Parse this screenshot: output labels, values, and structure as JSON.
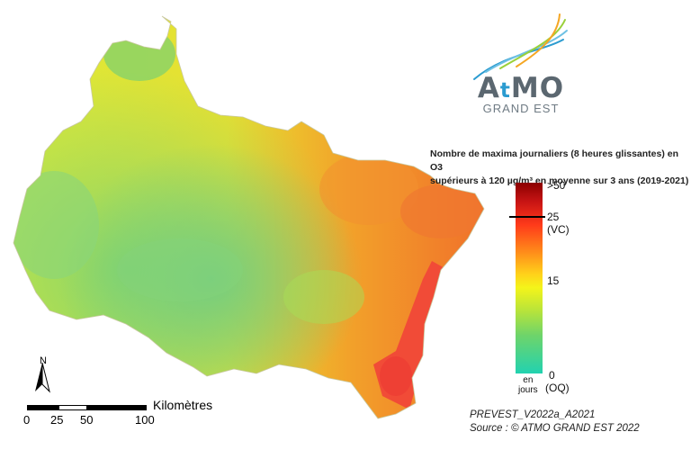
{
  "logo": {
    "line1_a": "A",
    "line1_t": "t",
    "line1_b": "MO",
    "line2": "GRAND EST"
  },
  "legend": {
    "title_line1": "Nombre de maxima journaliers (8 heures glissantes) en O3",
    "title_line2": "supérieurs à 120 µg/m³  en moyenne sur 3 ans (2019-2021)",
    "tick_max": ">50",
    "tick_25": "25",
    "tick_25_note": "(VC)",
    "tick_15": "15",
    "tick_0": "0",
    "tick_0_note": "(OQ)",
    "unit_line1": "en",
    "unit_line2": "jours",
    "colors": [
      "#8b0000",
      "#c81414",
      "#ff3a1a",
      "#ff8a1a",
      "#ffd21a",
      "#f4f41a",
      "#b8e43a",
      "#6ed46a",
      "#22d2b0"
    ]
  },
  "north_arrow": {
    "label": "N"
  },
  "scale": {
    "label_0": "0",
    "label_25": "25",
    "label_50": "50",
    "label_100": "100",
    "unit": "Kilomètres"
  },
  "footer": {
    "line1": "PREVEST_V2022a_A2021",
    "line2": "Source : © ATMO GRAND EST 2022"
  }
}
